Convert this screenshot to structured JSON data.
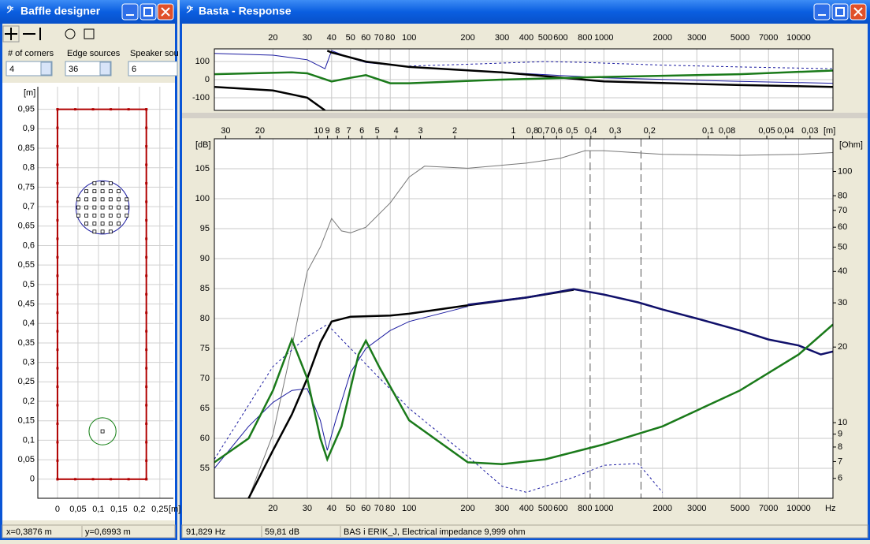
{
  "baffle_window": {
    "title": "Baffle designer",
    "fields": [
      {
        "label": "# of corners",
        "value": 4
      },
      {
        "label": "Edge sources",
        "value": 36
      },
      {
        "label": "Speaker sou",
        "value": 6
      }
    ],
    "status": [
      "x=0,3876 m",
      "y=0,6993 m"
    ]
  },
  "response_window": {
    "title": "Basta - Response",
    "status": [
      "91,829 Hz",
      "59,81 dB",
      "BAS i ERIK_J, Electrical impedance 9,999 ohm"
    ]
  },
  "chart_data": [
    {
      "type": "baffle",
      "x_unit": "[m]",
      "y_unit": "[m]",
      "xlim": [
        -0.048,
        0.283
      ],
      "ylim": [
        -0.049,
        1.008
      ],
      "xticks": [
        0,
        {
          "value": 0.05,
          "label": "0,05"
        },
        {
          "value": 0.1,
          "label": "0,1"
        },
        {
          "value": 0.15,
          "label": "0,15"
        },
        {
          "value": 0.2,
          "label": "0,2"
        },
        {
          "value": 0.25,
          "label": "0,25"
        }
      ],
      "yticks": [
        0,
        {
          "value": 0.05,
          "label": "0,05"
        },
        {
          "value": 0.1,
          "label": "0,1"
        },
        {
          "value": 0.15,
          "label": "0,15"
        },
        {
          "value": 0.2,
          "label": "0,2"
        },
        {
          "value": 0.25,
          "label": "0,25"
        },
        {
          "value": 0.3,
          "label": "0,3"
        },
        {
          "value": 0.35,
          "label": "0,35"
        },
        {
          "value": 0.4,
          "label": "0,4"
        },
        {
          "value": 0.45,
          "label": "0,45"
        },
        {
          "value": 0.5,
          "label": "0,5"
        },
        {
          "value": 0.55,
          "label": "0,55"
        },
        {
          "value": 0.6,
          "label": "0,6"
        },
        {
          "value": 0.65,
          "label": "0,65"
        },
        {
          "value": 0.7,
          "label": "0,7"
        },
        {
          "value": 0.75,
          "label": "0,75"
        },
        {
          "value": 0.8,
          "label": "0,8"
        },
        {
          "value": 0.85,
          "label": "0,85"
        },
        {
          "value": 0.9,
          "label": "0,9"
        },
        {
          "value": 0.95,
          "label": "0,95"
        }
      ],
      "baffle": {
        "width": 0.217,
        "height": 0.95,
        "color": "#b00000"
      },
      "drivers": [
        {
          "x": 0.11,
          "y": 0.698,
          "r": 0.065,
          "color": "#1a1aa0"
        },
        {
          "x": 0.11,
          "y": 0.123,
          "r": 0.033,
          "color": "#0a7a0a"
        }
      ],
      "grid": true
    },
    {
      "type": "line",
      "xlog": true,
      "xlim": [
        10,
        15000
      ],
      "ylim": [
        -170,
        170
      ],
      "yticks": [
        -100,
        0,
        100
      ],
      "xticks": [
        20,
        30,
        40,
        50,
        60,
        70,
        80,
        100,
        200,
        300,
        400,
        500,
        600,
        800,
        1000,
        2000,
        3000,
        5000,
        7000,
        10000
      ],
      "series": [
        {
          "color": "#1a1aa0",
          "line_width": 1,
          "x": [
            10,
            20,
            30,
            37,
            40,
            50,
            60,
            100,
            300,
            1000,
            5000,
            15000
          ],
          "values": [
            145,
            135,
            110,
            60,
            160,
            120,
            95,
            70,
            40,
            10,
            -10,
            -20
          ]
        },
        {
          "color": "#1a1aa0",
          "line_width": 1,
          "dash": true,
          "x": [
            100,
            200,
            500,
            800,
            2000,
            5000,
            15000
          ],
          "values": [
            75,
            85,
            100,
            95,
            80,
            70,
            60
          ]
        },
        {
          "color": "#000000",
          "line_width": 2.5,
          "x": [
            10,
            20,
            30,
            37,
            38,
            38,
            40,
            60,
            100,
            300,
            1000,
            5000,
            15000
          ],
          "values": [
            -40,
            -60,
            -100,
            -170,
            null,
            160,
            150,
            100,
            70,
            40,
            -10,
            -30,
            -40
          ]
        },
        {
          "color": "#1a7a1a",
          "line_width": 2.5,
          "x": [
            10,
            25,
            30,
            40,
            50,
            60,
            80,
            100,
            300,
            1000,
            5000,
            15000
          ],
          "values": [
            30,
            40,
            35,
            -10,
            10,
            25,
            -20,
            -20,
            0,
            15,
            30,
            50
          ]
        }
      ],
      "grid": true
    },
    {
      "type": "line",
      "xlog": true,
      "xlim": [
        10,
        15000
      ],
      "ylim": [
        50,
        110
      ],
      "yticks": [
        55,
        60,
        65,
        70,
        75,
        80,
        85,
        90,
        95,
        100,
        105
      ],
      "y_unit": "[dB]",
      "x_unit": "Hz",
      "y2log": true,
      "y2lim": [
        5,
        135
      ],
      "y2ticks": [
        6,
        7,
        8,
        9,
        10,
        20,
        30,
        40,
        50,
        60,
        70,
        80,
        100
      ],
      "y2_unit": "[Ohm]",
      "xticks": [
        20,
        30,
        40,
        50,
        60,
        70,
        80,
        100,
        200,
        300,
        400,
        500,
        600,
        800,
        1000,
        2000,
        3000,
        5000,
        7000,
        10000
      ],
      "x2_unit": "[m]",
      "x2ticks": [
        30,
        20,
        10,
        9,
        8,
        7,
        6,
        5,
        4,
        3,
        2,
        1,
        {
          "value": 0.8,
          "label": "0,8"
        },
        {
          "value": 0.7,
          "label": "0,7"
        },
        {
          "value": 0.6,
          "label": "0,6"
        },
        {
          "value": 0.5,
          "label": "0,5"
        },
        {
          "value": 0.4,
          "label": "0,4"
        },
        {
          "value": 0.3,
          "label": "0,3"
        },
        {
          "value": 0.2,
          "label": "0,2"
        },
        {
          "value": 0.1,
          "label": "0,1"
        },
        {
          "value": 0.08,
          "label": "0,08"
        },
        {
          "value": 0.05,
          "label": "0,05"
        },
        {
          "value": 0.04,
          "label": "0,04"
        },
        {
          "value": 0.03,
          "label": "0,03"
        }
      ],
      "markers": [
        850,
        1550
      ],
      "series": [
        {
          "color": "#777777",
          "line_width": 1,
          "axis": "y2",
          "x": [
            15,
            20,
            25,
            30,
            35,
            40,
            45,
            50,
            60,
            80,
            100,
            120,
            200,
            400,
            600,
            800,
            1000,
            2000,
            5000,
            10000,
            15000
          ],
          "values": [
            5,
            9,
            20,
            40,
            50,
            65,
            58,
            57,
            60,
            75,
            95,
            105,
            103,
            108,
            113,
            121,
            121,
            117,
            116,
            117,
            119
          ]
        },
        {
          "color": "#1a1aa0",
          "line_width": 1,
          "dash": true,
          "x": [
            10,
            20,
            30,
            38,
            50,
            100,
            200,
            300,
            400,
            700,
            1000,
            1500,
            2000
          ],
          "values": [
            56.5,
            72,
            77,
            79,
            75,
            65,
            57,
            52,
            51,
            53.5,
            55.5,
            55.8,
            51
          ]
        },
        {
          "color": "#1a1aa0",
          "line_width": 1,
          "x": [
            10,
            15,
            20,
            25,
            30,
            35,
            38,
            42,
            50,
            60,
            80,
            100,
            200
          ],
          "values": [
            55,
            62,
            66,
            68,
            68.3,
            63,
            58,
            63,
            71,
            75,
            78,
            79.5,
            82
          ]
        },
        {
          "color": "#000000",
          "line_width": 2.5,
          "x": [
            15,
            20,
            25,
            30,
            35,
            40,
            50,
            80,
            100,
            200,
            400,
            700
          ],
          "values": [
            50,
            58,
            64,
            70,
            76,
            79.5,
            80.3,
            80.5,
            80.8,
            82.2,
            83.5,
            84.8
          ]
        },
        {
          "color": "#10106a",
          "line_width": 2.5,
          "x": [
            200,
            400,
            700,
            1000,
            1500,
            2000,
            3000,
            5000,
            7000,
            10000,
            13000,
            15000
          ],
          "values": [
            82.3,
            83.5,
            84.9,
            84,
            82.7,
            81.5,
            80,
            78,
            76.5,
            75.5,
            74,
            74.5
          ]
        },
        {
          "color": "#1a7a1a",
          "line_width": 2.5,
          "x": [
            10,
            15,
            20,
            25,
            30,
            35,
            38,
            45,
            55,
            60,
            70,
            100,
            200,
            300,
            500,
            1000,
            2000,
            5000,
            10000,
            15000
          ],
          "values": [
            56,
            60,
            68,
            76.5,
            70,
            60,
            56.5,
            62,
            74,
            76.3,
            72,
            63,
            56,
            55.7,
            56.5,
            59,
            62,
            68,
            74,
            79
          ]
        }
      ],
      "grid": true
    }
  ]
}
